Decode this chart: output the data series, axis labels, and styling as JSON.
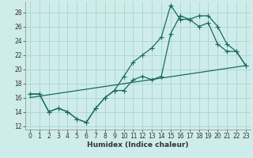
{
  "xlabel": "Humidex (Indice chaleur)",
  "background_color": "#ceecea",
  "grid_color": "#aed8d4",
  "line_color": "#1a6b5a",
  "xlim": [
    -0.5,
    23.5
  ],
  "ylim": [
    11.5,
    29.5
  ],
  "xticks": [
    0,
    1,
    2,
    3,
    4,
    5,
    6,
    7,
    8,
    9,
    10,
    11,
    12,
    13,
    14,
    15,
    16,
    17,
    18,
    19,
    20,
    21,
    22,
    23
  ],
  "yticks": [
    12,
    14,
    16,
    18,
    20,
    22,
    24,
    26,
    28
  ],
  "line1_x": [
    0,
    1,
    2,
    3,
    4,
    5,
    6,
    7,
    8,
    9,
    10,
    11,
    12,
    13,
    14,
    15,
    16,
    17,
    18,
    19,
    20,
    21,
    22,
    23
  ],
  "line1_y": [
    16.5,
    16.5,
    14,
    14.5,
    14,
    13,
    12.5,
    14.5,
    16,
    17,
    17,
    18.5,
    19,
    18.5,
    19,
    25,
    27.5,
    27,
    26,
    26.5,
    23.5,
    22.5,
    22.5,
    20.5
  ],
  "line2_x": [
    0,
    1,
    2,
    3,
    4,
    5,
    6,
    7,
    8,
    9,
    10,
    11,
    12,
    13,
    14,
    15,
    16,
    17,
    18,
    19,
    20,
    21,
    22,
    23
  ],
  "line2_y": [
    16.5,
    16.5,
    14,
    14.5,
    14,
    13,
    12.5,
    14.5,
    16,
    17,
    19,
    21,
    22,
    23,
    24.5,
    29,
    27,
    27,
    27.5,
    27.5,
    26,
    23.5,
    22.5,
    20.5
  ],
  "line3_x": [
    0,
    23
  ],
  "line3_y": [
    16.0,
    20.5
  ],
  "marker_size": 2.5,
  "line_width": 0.9,
  "tick_fontsize": 5.5,
  "xlabel_fontsize": 6.5
}
